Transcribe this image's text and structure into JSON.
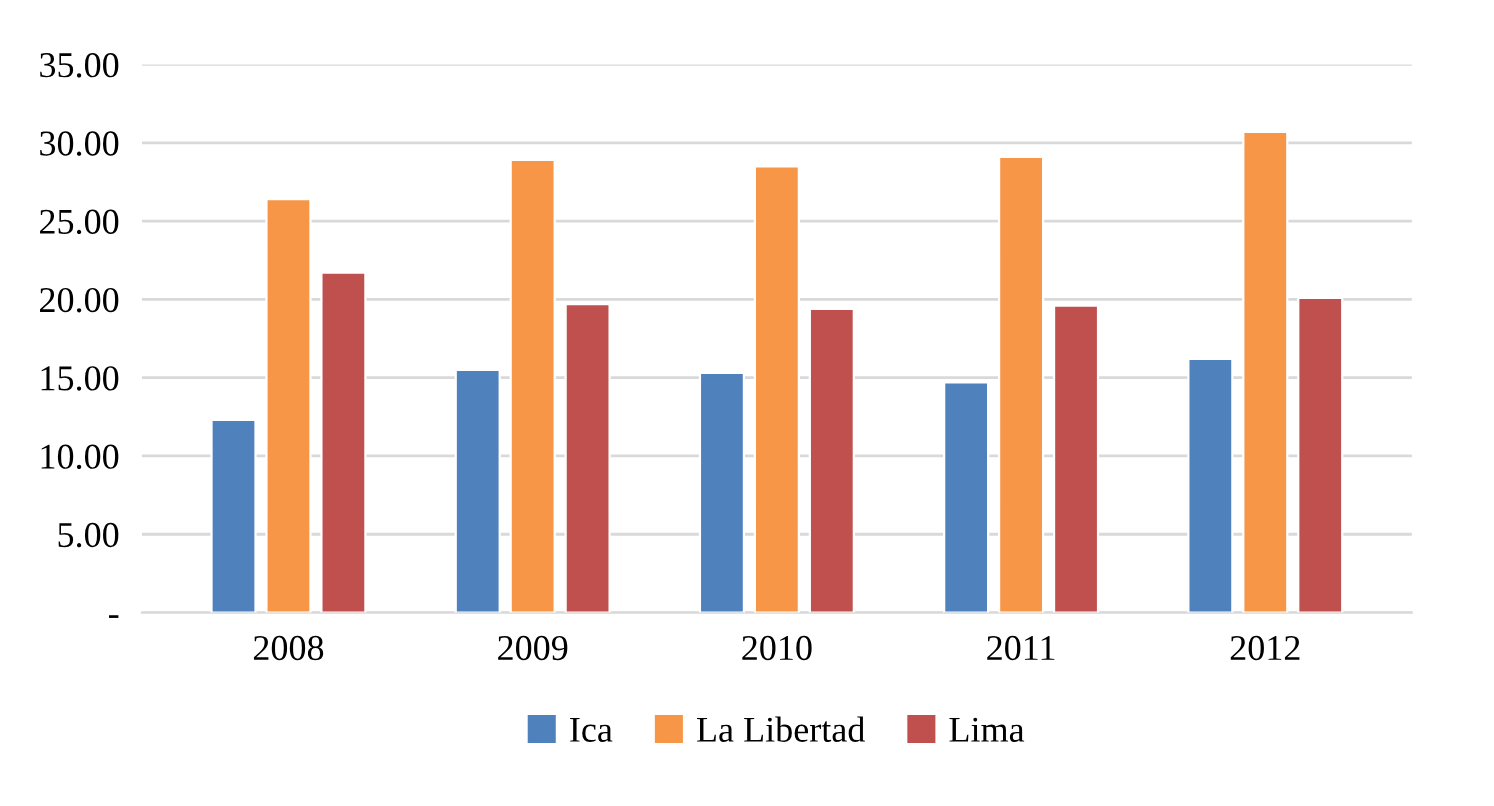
{
  "chart_data": {
    "type": "bar",
    "categories": [
      "2008",
      "2009",
      "2010",
      "2011",
      "2012"
    ],
    "series": [
      {
        "name": "Ica",
        "color": "#4f81bd",
        "values": [
          12.3,
          15.5,
          15.3,
          14.7,
          16.2
        ]
      },
      {
        "name": "La Libertad",
        "color": "#f79646",
        "values": [
          26.4,
          28.9,
          28.5,
          29.1,
          30.7
        ]
      },
      {
        "name": "Lima",
        "color": "#c0504d",
        "values": [
          21.7,
          19.7,
          19.4,
          19.6,
          20.1
        ]
      }
    ],
    "ylim": [
      0,
      35
    ],
    "yticks": [
      {
        "value": 0,
        "label": "-"
      },
      {
        "value": 5,
        "label": "5.00"
      },
      {
        "value": 10,
        "label": "10.00"
      },
      {
        "value": 15,
        "label": "15.00"
      },
      {
        "value": 20,
        "label": "20.00"
      },
      {
        "value": 25,
        "label": "25.00"
      },
      {
        "value": 30,
        "label": "30.00"
      },
      {
        "value": 35,
        "label": "35.00"
      }
    ],
    "grid": "y",
    "legend": "bottom"
  }
}
